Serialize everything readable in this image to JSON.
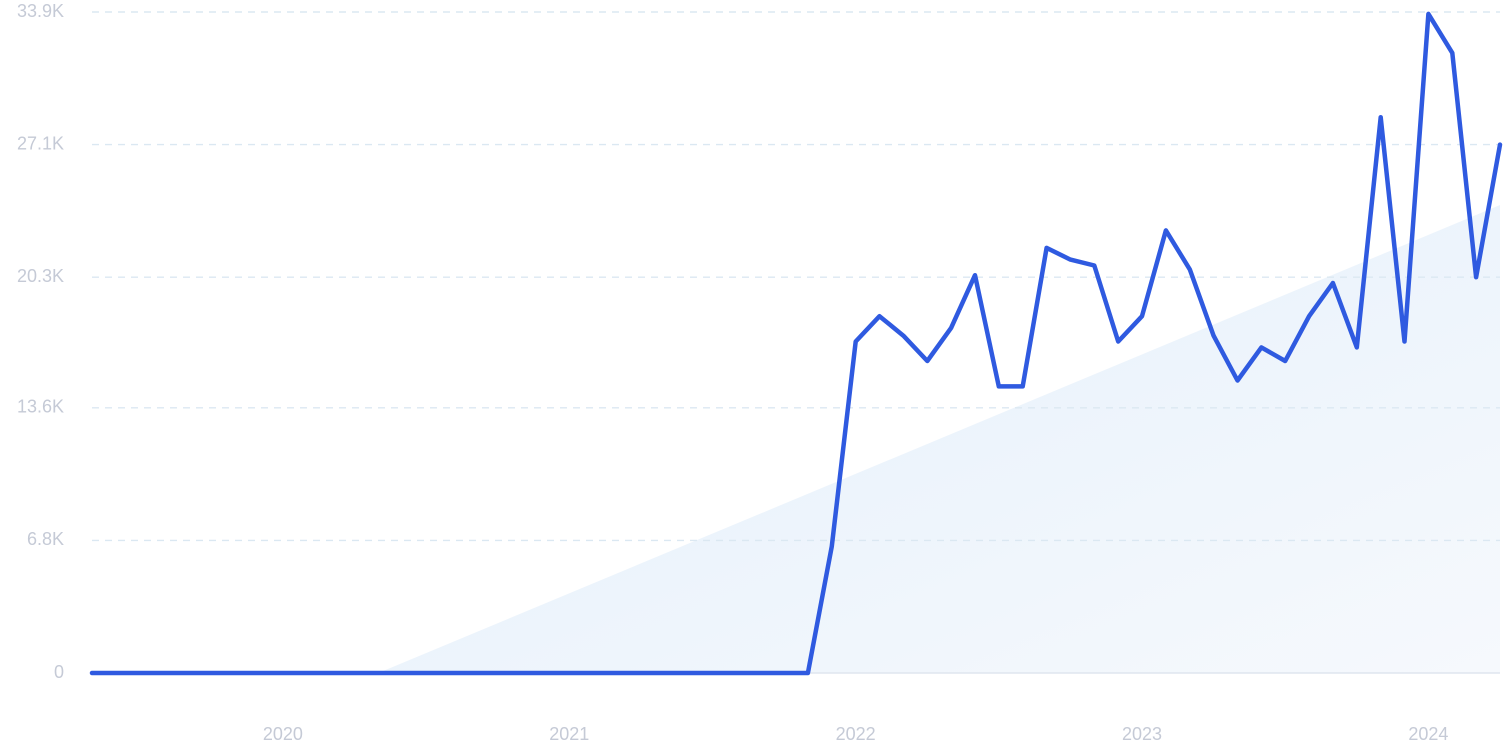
{
  "chart_data": {
    "type": "line",
    "title": "",
    "xlabel": "",
    "ylabel": "",
    "grid": true,
    "legend": "none",
    "ylim": [
      0,
      33900
    ],
    "xlim": [
      "2019-05",
      "2024-03"
    ],
    "y_ticks": [
      {
        "value": 0,
        "label": "0"
      },
      {
        "value": 6800,
        "label": "6.8K"
      },
      {
        "value": 13600,
        "label": "13.6K"
      },
      {
        "value": 20300,
        "label": "20.3K"
      },
      {
        "value": 27100,
        "label": "27.1K"
      },
      {
        "value": 33900,
        "label": "33.9K"
      }
    ],
    "x_ticks": [
      {
        "value": "2020-01",
        "label": "2020"
      },
      {
        "value": "2021-01",
        "label": "2021"
      },
      {
        "value": "2022-01",
        "label": "2022"
      },
      {
        "value": "2023-01",
        "label": "2023"
      },
      {
        "value": "2024-01",
        "label": "2024"
      }
    ],
    "series": [
      {
        "color": "#2f5ae0",
        "points": [
          {
            "x": "2019-05",
            "y": 0
          },
          {
            "x": "2020-05",
            "y": 0
          },
          {
            "x": "2021-05",
            "y": 0
          },
          {
            "x": "2021-11",
            "y": 0
          },
          {
            "x": "2021-12",
            "y": 6500
          },
          {
            "x": "2022-01",
            "y": 17000
          },
          {
            "x": "2022-02",
            "y": 18300
          },
          {
            "x": "2022-03",
            "y": 17300
          },
          {
            "x": "2022-04",
            "y": 16000
          },
          {
            "x": "2022-05",
            "y": 17700
          },
          {
            "x": "2022-06",
            "y": 20400
          },
          {
            "x": "2022-07",
            "y": 14700
          },
          {
            "x": "2022-08",
            "y": 14700
          },
          {
            "x": "2022-09",
            "y": 21800
          },
          {
            "x": "2022-10",
            "y": 21200
          },
          {
            "x": "2022-11",
            "y": 20900
          },
          {
            "x": "2022-12",
            "y": 17000
          },
          {
            "x": "2023-01",
            "y": 18300
          },
          {
            "x": "2023-02",
            "y": 22700
          },
          {
            "x": "2023-03",
            "y": 20700
          },
          {
            "x": "2023-04",
            "y": 17300
          },
          {
            "x": "2023-05",
            "y": 15000
          },
          {
            "x": "2023-06",
            "y": 16700
          },
          {
            "x": "2023-07",
            "y": 16000
          },
          {
            "x": "2023-08",
            "y": 18300
          },
          {
            "x": "2023-09",
            "y": 20000
          },
          {
            "x": "2023-10",
            "y": 16700
          },
          {
            "x": "2023-11",
            "y": 28500
          },
          {
            "x": "2023-12",
            "y": 17000
          },
          {
            "x": "2024-01",
            "y": 33800
          },
          {
            "x": "2024-02",
            "y": 31800
          },
          {
            "x": "2024-03",
            "y": 20300
          },
          {
            "x": "2024-04",
            "y": 27100
          }
        ]
      }
    ],
    "trend_area": {
      "color": "#e3effa",
      "start": {
        "x": "2020-05",
        "y": 0
      },
      "end": {
        "x": "2024-04",
        "y": 24000
      }
    }
  }
}
